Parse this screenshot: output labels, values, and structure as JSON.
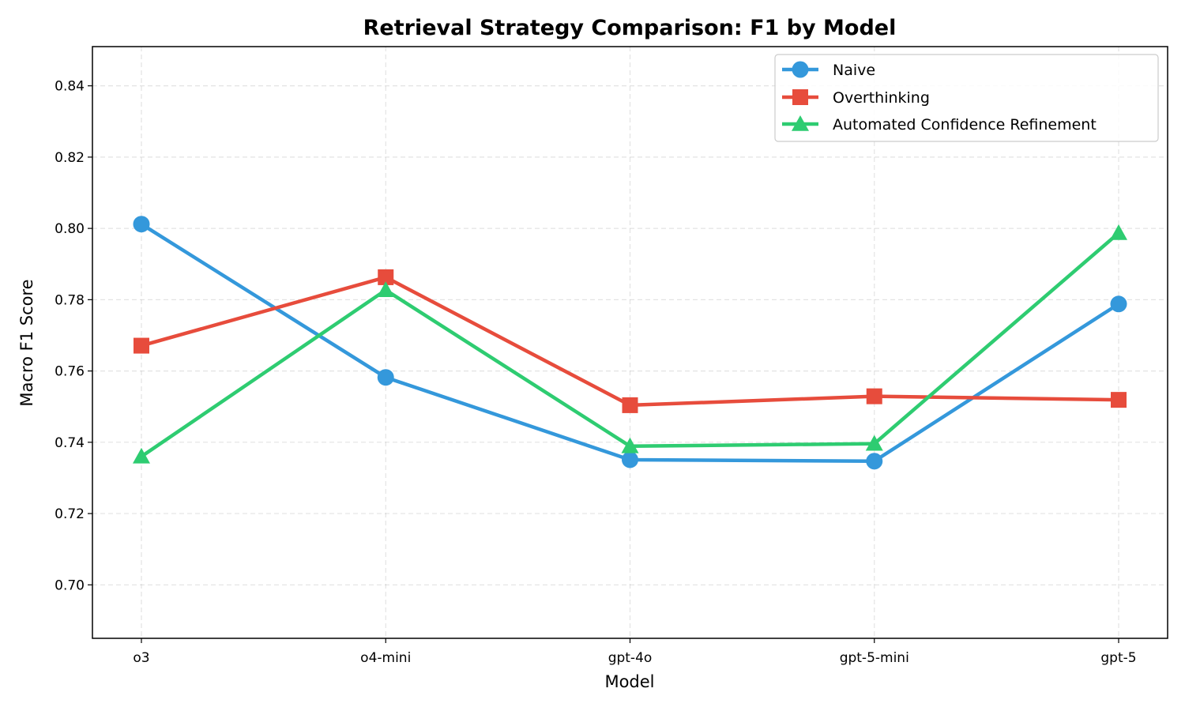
{
  "chart_data": {
    "type": "line",
    "title": "Retrieval Strategy Comparison: F1 by Model",
    "xlabel": "Model",
    "ylabel": "Macro F1 Score",
    "categories": [
      "o3",
      "o4-mini",
      "gpt-4o",
      "gpt-5-mini",
      "gpt-5"
    ],
    "ylim": [
      0.685,
      0.851
    ],
    "yticks": [
      0.7,
      0.72,
      0.74,
      0.76,
      0.78,
      0.8,
      0.82,
      0.84
    ],
    "ytick_labels": [
      "0.70",
      "0.72",
      "0.74",
      "0.76",
      "0.78",
      "0.80",
      "0.82",
      "0.84"
    ],
    "grid": true,
    "legend_position": "top-right",
    "series": [
      {
        "name": "Naive",
        "marker": "circle",
        "color": "#3498db",
        "values": [
          0.8012,
          0.7582,
          0.7351,
          0.7347,
          0.7788
        ]
      },
      {
        "name": "Overthinking",
        "marker": "square",
        "color": "#e74c3c",
        "values": [
          0.7671,
          0.7863,
          0.7504,
          0.7529,
          0.7519
        ]
      },
      {
        "name": "Automated Confidence Refinement",
        "marker": "triangle",
        "color": "#2ecc71",
        "values": [
          0.736,
          0.7827,
          0.7389,
          0.7396,
          0.7987
        ]
      }
    ]
  }
}
